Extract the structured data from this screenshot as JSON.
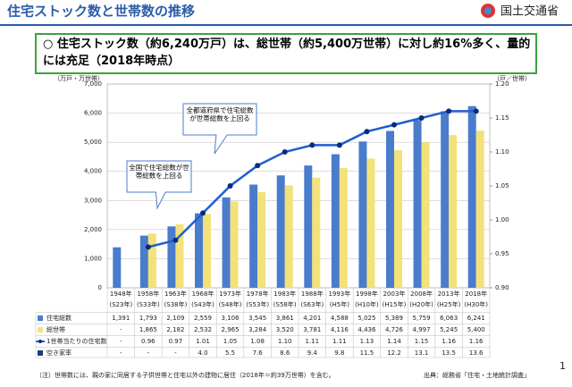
{
  "header": {
    "title": "住宅ストック数と世帯数の推移",
    "logo": "国土交通省"
  },
  "summary": "○ 住宅ストック数（約6,240万戸）は、総世帯（約5,400万世帯）に対し約16%多く、量的には充足（2018年時点）",
  "chart_data": {
    "type": "bar",
    "y_label": "（万戸・万世帯）",
    "y2_label": "（戸／世帯）",
    "categories": [
      "1948年",
      "1958年",
      "1963年",
      "1968年",
      "1973年",
      "1978年",
      "1983年",
      "1988年",
      "1993年",
      "1998年",
      "2003年",
      "2008年",
      "2013年",
      "2018年"
    ],
    "category_sublabels": [
      "(S23年)",
      "(S33年)",
      "(S38年)",
      "(S43年)",
      "(S48年)",
      "(S53年)",
      "(S58年)",
      "(S63年)",
      "(H5年)",
      "(H10年)",
      "(H15年)",
      "(H20年)",
      "(H25年)",
      "(H30年)"
    ],
    "ylim": [
      0,
      7000
    ],
    "yticks": [
      0,
      {
        "value": 1000,
        "label": "1,000"
      },
      {
        "value": 2000,
        "label": "2,000"
      },
      {
        "value": 3000,
        "label": "3,000"
      },
      {
        "value": 4000,
        "label": "4,000"
      },
      {
        "value": 5000,
        "label": "5,000"
      },
      {
        "value": 6000,
        "label": "6,000"
      },
      {
        "value": 7000,
        "label": "7,000"
      }
    ],
    "y2lim": [
      0.9,
      1.2
    ],
    "y2ticks": [
      {
        "value": 0.9,
        "label": "0.90"
      },
      0.95,
      {
        "value": 1.0,
        "label": "1.00"
      },
      1.05,
      {
        "value": 1.1,
        "label": "1.10"
      },
      1.15,
      {
        "value": 1.2,
        "label": "1.20"
      }
    ],
    "series": [
      {
        "name": "住宅総数",
        "color": "#4a7ccc",
        "values": [
          1391,
          1793,
          2109,
          2559,
          3106,
          3545,
          3861,
          4201,
          4588,
          5025,
          5389,
          5759,
          6063,
          6241
        ],
        "value_labels": [
          "1,391",
          "1,793",
          "2,109",
          "2,559",
          "3,106",
          "3,545",
          "3,861",
          "4,201",
          "4,588",
          "5,025",
          "5,389",
          "5,759",
          "6,063",
          "6,241"
        ]
      },
      {
        "name": "総世帯",
        "color": "#f3e17a",
        "values": [
          null,
          1865,
          2182,
          2532,
          2965,
          3284,
          3520,
          3781,
          4116,
          4436,
          4726,
          4997,
          5245,
          5400
        ],
        "value_labels": [
          "-",
          "1,865",
          "2,182",
          "2,532",
          "2,965",
          "3,284",
          "3,520",
          "3,781",
          "4,116",
          "4,436",
          "4,726",
          "4,997",
          "5,245",
          "5,400"
        ]
      },
      {
        "name": "1世帯当たりの住宅数",
        "color": "#1f5fcf",
        "axis": "y2",
        "values": [
          null,
          0.96,
          0.97,
          1.01,
          1.05,
          1.08,
          1.1,
          1.11,
          1.11,
          1.13,
          1.14,
          1.15,
          1.16,
          1.16
        ],
        "value_labels": [
          "-",
          "0.96",
          "0.97",
          "1.01",
          "1.05",
          "1.08",
          "1.10",
          "1.11",
          "1.11",
          "1.13",
          "1.14",
          "1.15",
          "1.16",
          "1.16"
        ]
      }
    ],
    "vacancy_rate": {
      "name": "空き家率",
      "values": [
        null,
        null,
        null,
        4.0,
        5.5,
        7.6,
        8.6,
        9.4,
        9.8,
        11.5,
        12.2,
        13.1,
        13.5,
        13.6
      ],
      "value_labels": [
        "-",
        "-",
        "-",
        "4.0",
        "5.5",
        "7.6",
        "8.6",
        "9.4",
        "9.8",
        "11.5",
        "12.2",
        "13.1",
        "13.5",
        "13.6"
      ]
    },
    "annotations": [
      "全国で住宅総数が世帯総数を上回る",
      "全都道府県で住宅総数が世帯総数を上回る"
    ]
  },
  "footnote": "（注）世帯数には、親の家に同居する子供世帯と住宅以外の建物に居住（2018年＝約39万世帯）を含む。",
  "source": "出典：総務省「住宅・土地統計調査」",
  "page_number": "1"
}
